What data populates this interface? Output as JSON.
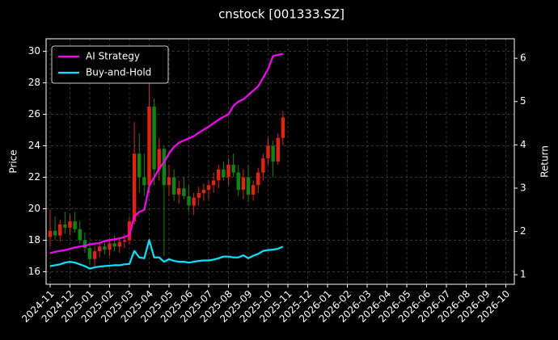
{
  "chart_data": {
    "type": "candlestick",
    "title": "cnstock [001333.SZ]",
    "ylabel": "Price",
    "y2label": "Return",
    "categories": [
      "2024-11",
      null,
      null,
      null,
      "2024-12",
      null,
      null,
      null,
      "2025-01",
      null,
      null,
      null,
      "2025-02",
      null,
      null,
      null,
      "2025-03",
      null,
      null,
      null,
      "2025-04",
      null,
      null,
      null,
      "2025-05",
      null,
      null,
      null,
      "2025-06",
      null,
      null,
      null,
      "2025-07",
      null,
      null,
      null,
      "2025-08",
      null,
      null,
      null,
      "2025-09",
      null,
      null,
      null,
      "2025-10",
      null,
      null,
      null,
      "2025-11",
      null,
      null,
      null,
      "2025-12",
      null,
      null,
      null,
      "2026-01",
      null,
      null,
      null,
      "2026-02",
      null,
      null,
      null,
      "2026-03",
      null,
      null,
      null,
      "2026-04",
      null,
      null,
      null,
      "2026-05",
      null,
      null,
      null,
      "2026-06",
      null,
      null,
      null,
      "2026-07",
      null,
      null,
      null,
      "2026-08",
      null,
      null,
      null,
      "2026-09",
      null,
      null,
      null,
      "2026-10"
    ],
    "open": [
      18.2,
      18.6,
      18.3,
      19.0,
      18.8,
      19.2,
      18.7,
      18.0,
      17.5,
      16.8,
      17.3,
      17.6,
      17.4,
      17.8,
      17.6,
      17.9,
      18.0,
      19.2,
      23.5,
      22.0,
      21.5,
      26.5,
      22.5,
      23.8,
      21.5,
      22.0,
      20.9,
      21.3,
      20.8,
      20.2,
      20.7,
      21.0,
      21.2,
      21.5,
      21.8,
      22.5,
      22.0,
      22.8,
      22.3,
      21.2,
      22.0,
      20.9,
      21.5,
      22.3,
      23.2,
      24.0,
      23.0,
      24.5,
      null,
      null,
      null,
      null,
      null,
      null,
      null,
      null,
      null,
      null,
      null,
      null,
      null,
      null,
      null,
      null,
      null,
      null,
      null,
      null,
      null,
      null,
      null,
      null,
      null,
      null,
      null,
      null,
      null,
      null,
      null,
      null,
      null,
      null,
      null,
      null,
      null,
      null,
      null,
      null,
      null,
      null,
      null,
      null,
      null
    ],
    "high": [
      19.9,
      19.5,
      19.3,
      19.8,
      19.6,
      19.8,
      19.2,
      18.5,
      17.9,
      17.6,
      17.9,
      18.0,
      18.1,
      18.3,
      18.2,
      18.4,
      19.5,
      25.5,
      24.8,
      23.5,
      28.5,
      27.0,
      24.5,
      24.0,
      22.8,
      22.5,
      21.8,
      22.0,
      21.5,
      21.0,
      21.4,
      21.6,
      21.8,
      22.3,
      22.8,
      23.0,
      23.2,
      23.5,
      22.8,
      22.5,
      22.8,
      21.8,
      22.6,
      23.5,
      24.5,
      24.3,
      24.8,
      26.2,
      null,
      null,
      null,
      null,
      null,
      null,
      null,
      null,
      null,
      null,
      null,
      null,
      null,
      null,
      null,
      null,
      null,
      null,
      null,
      null,
      null,
      null,
      null,
      null,
      null,
      null,
      null,
      null,
      null,
      null,
      null,
      null,
      null,
      null,
      null,
      null,
      null,
      null,
      null,
      null,
      null,
      null,
      null,
      null,
      null
    ],
    "low": [
      17.6,
      18.0,
      17.9,
      18.4,
      18.3,
      18.5,
      17.8,
      17.2,
      16.4,
      16.3,
      16.9,
      17.1,
      17.0,
      17.3,
      17.2,
      17.5,
      17.7,
      19.0,
      21.0,
      20.8,
      21.0,
      21.5,
      21.8,
      17.0,
      20.8,
      20.5,
      20.3,
      20.6,
      19.8,
      19.6,
      20.2,
      20.5,
      20.6,
      21.0,
      21.3,
      21.8,
      21.5,
      22.0,
      20.8,
      20.6,
      20.4,
      20.5,
      21.0,
      21.8,
      22.8,
      22.0,
      22.8,
      24.0,
      null,
      null,
      null,
      null,
      null,
      null,
      null,
      null,
      null,
      null,
      null,
      null,
      null,
      null,
      null,
      null,
      null,
      null,
      null,
      null,
      null,
      null,
      null,
      null,
      null,
      null,
      null,
      null,
      null,
      null,
      null,
      null,
      null,
      null,
      null,
      null,
      null,
      null,
      null,
      null,
      null,
      null,
      null,
      null,
      null
    ],
    "close": [
      18.6,
      18.3,
      19.0,
      18.8,
      19.2,
      18.7,
      18.0,
      17.5,
      16.8,
      17.3,
      17.6,
      17.4,
      17.8,
      17.6,
      17.9,
      18.0,
      19.2,
      23.5,
      22.0,
      21.5,
      26.5,
      22.5,
      23.8,
      21.5,
      22.0,
      20.9,
      21.3,
      20.8,
      20.2,
      20.7,
      21.0,
      21.2,
      21.5,
      21.8,
      22.5,
      22.0,
      22.8,
      22.3,
      21.2,
      22.0,
      20.9,
      21.5,
      22.3,
      23.2,
      24.0,
      23.0,
      24.5,
      25.8,
      null,
      null,
      null,
      null,
      null,
      null,
      null,
      null,
      null,
      null,
      null,
      null,
      null,
      null,
      null,
      null,
      null,
      null,
      null,
      null,
      null,
      null,
      null,
      null,
      null,
      null,
      null,
      null,
      null,
      null,
      null,
      null,
      null,
      null,
      null,
      null,
      null,
      null,
      null,
      null,
      null,
      null,
      null,
      null,
      null
    ],
    "up_color": "#e8200c",
    "down_color": "#0a8a0a",
    "series": [
      {
        "name": "AI Strategy",
        "color": "#ff00ff",
        "axis": "y2",
        "values": [
          1.5,
          1.53,
          1.55,
          1.57,
          1.6,
          1.63,
          1.65,
          1.67,
          1.7,
          1.72,
          1.73,
          1.78,
          1.8,
          1.82,
          1.84,
          1.87,
          1.92,
          2.35,
          2.45,
          2.5,
          3.05,
          3.25,
          3.45,
          3.6,
          3.8,
          3.95,
          4.05,
          4.1,
          4.15,
          4.2,
          4.28,
          4.35,
          4.42,
          4.5,
          4.58,
          4.65,
          4.7,
          4.9,
          5.0,
          5.05,
          5.15,
          5.25,
          5.35,
          5.55,
          5.75,
          6.05,
          6.08,
          6.1,
          null,
          null,
          null,
          null,
          null,
          null,
          null,
          null,
          null,
          null,
          null,
          null,
          null,
          null,
          null,
          null,
          null,
          null,
          null,
          null,
          null,
          null,
          null,
          null,
          null,
          null,
          null,
          null,
          null,
          null,
          null,
          null,
          null,
          null,
          null,
          null,
          null,
          null,
          null,
          null,
          null,
          null,
          null,
          null,
          null
        ]
      },
      {
        "name": "Buy-and-Hold",
        "color": "#00e5ff",
        "axis": "y2",
        "values": [
          1.2,
          1.22,
          1.24,
          1.28,
          1.3,
          1.28,
          1.24,
          1.2,
          1.14,
          1.17,
          1.19,
          1.2,
          1.21,
          1.22,
          1.22,
          1.24,
          1.25,
          1.55,
          1.4,
          1.38,
          1.8,
          1.4,
          1.4,
          1.3,
          1.36,
          1.32,
          1.3,
          1.3,
          1.28,
          1.3,
          1.32,
          1.33,
          1.33,
          1.35,
          1.38,
          1.42,
          1.42,
          1.4,
          1.4,
          1.45,
          1.38,
          1.44,
          1.48,
          1.55,
          1.57,
          1.58,
          1.6,
          1.65,
          null,
          null,
          null,
          null,
          null,
          null,
          null,
          null,
          null,
          null,
          null,
          null,
          null,
          null,
          null,
          null,
          null,
          null,
          null,
          null,
          null,
          null,
          null,
          null,
          null,
          null,
          null,
          null,
          null,
          null,
          null,
          null,
          null,
          null,
          null,
          null,
          null,
          null,
          null,
          null,
          null,
          null,
          null,
          null,
          null
        ]
      }
    ],
    "ylim": [
      15.2,
      30.8
    ],
    "yticks": [
      16,
      18,
      20,
      22,
      24,
      26,
      28,
      30
    ],
    "y2lim": [
      0.78,
      6.45
    ],
    "y2ticks": [
      1,
      2,
      3,
      4,
      5,
      6
    ],
    "grid": true,
    "legend": "upper left"
  }
}
